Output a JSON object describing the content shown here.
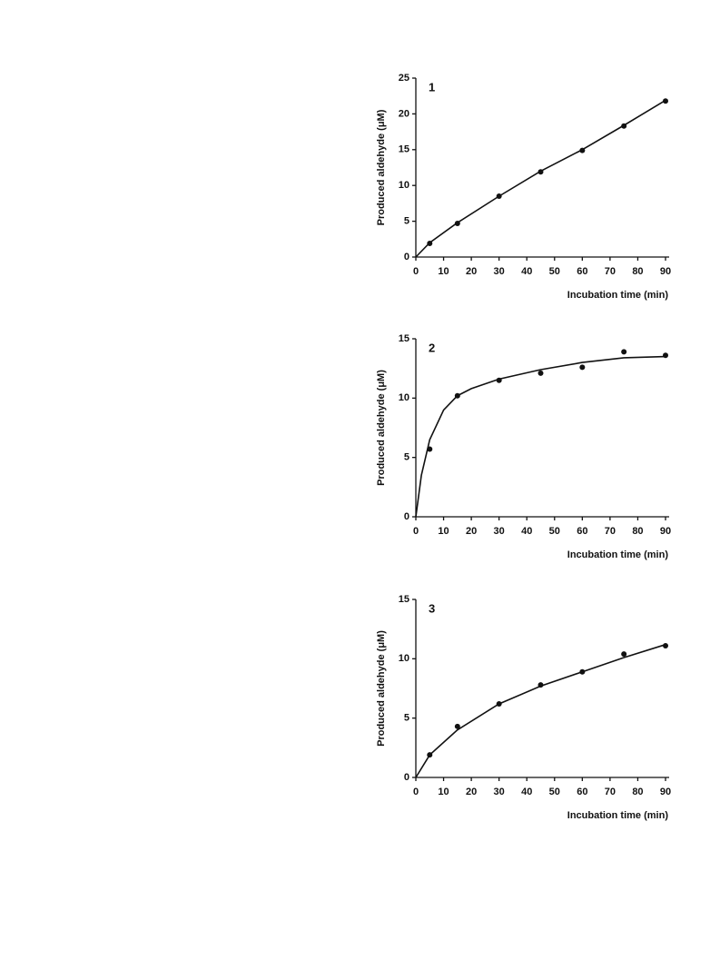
{
  "chart_data": [
    {
      "type": "scatter",
      "label": "1",
      "y_label": "Produced aldehyde (μM)",
      "x_label": "Incubation time (min)",
      "x": [
        5,
        15,
        30,
        45,
        60,
        75,
        90
      ],
      "values": [
        1.9,
        4.7,
        8.5,
        11.9,
        14.9,
        18.3,
        21.8
      ],
      "fit": {
        "x": [
          0,
          5,
          15,
          30,
          45,
          60,
          75,
          90
        ],
        "values": [
          0,
          2.0,
          4.8,
          8.5,
          12.0,
          15.0,
          18.4,
          21.9
        ]
      },
      "color": "#111111",
      "xlim": [
        0,
        90
      ],
      "xticks": [
        0,
        10,
        20,
        30,
        40,
        50,
        60,
        70,
        80,
        90
      ],
      "ylim": [
        0,
        25
      ],
      "yticks": [
        0,
        5,
        10,
        15,
        20,
        25
      ]
    },
    {
      "type": "scatter",
      "label": "2",
      "y_label": "Produced aldehyde (μM)",
      "x_label": "Incubation time (min)",
      "x": [
        5,
        15,
        30,
        45,
        60,
        75,
        90
      ],
      "values": [
        5.7,
        10.2,
        11.5,
        12.1,
        12.6,
        13.9,
        13.6
      ],
      "fit": {
        "x": [
          0,
          2,
          5,
          10,
          15,
          20,
          30,
          45,
          60,
          75,
          90
        ],
        "values": [
          0,
          3.5,
          6.5,
          9.0,
          10.2,
          10.8,
          11.6,
          12.4,
          13.0,
          13.4,
          13.5
        ]
      },
      "color": "#111111",
      "xlim": [
        0,
        90
      ],
      "xticks": [
        0,
        10,
        20,
        30,
        40,
        50,
        60,
        70,
        80,
        90
      ],
      "ylim": [
        0,
        15
      ],
      "yticks": [
        0,
        5,
        10,
        15
      ]
    },
    {
      "type": "scatter",
      "label": "3",
      "y_label": "Produced aldehyde (μM)",
      "x_label": "Incubation time (min)",
      "x": [
        5,
        15,
        30,
        45,
        60,
        75,
        90
      ],
      "values": [
        1.9,
        4.3,
        6.2,
        7.8,
        8.9,
        10.4,
        11.1
      ],
      "fit": {
        "x": [
          0,
          5,
          15,
          30,
          45,
          60,
          75,
          90
        ],
        "values": [
          0,
          1.9,
          4.0,
          6.2,
          7.7,
          8.9,
          10.1,
          11.2
        ]
      },
      "color": "#111111",
      "xlim": [
        0,
        90
      ],
      "xticks": [
        0,
        10,
        20,
        30,
        40,
        50,
        60,
        70,
        80,
        90
      ],
      "ylim": [
        0,
        15
      ],
      "yticks": [
        0,
        5,
        10,
        15
      ]
    }
  ]
}
